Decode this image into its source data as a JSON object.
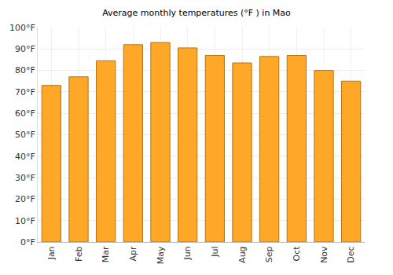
{
  "chart_data": {
    "type": "bar",
    "title": "Average monthly temperatures (°F ) in Mao",
    "categories": [
      "Jan",
      "Feb",
      "Mar",
      "Apr",
      "May",
      "Jun",
      "Jul",
      "Aug",
      "Sep",
      "Oct",
      "Nov",
      "Dec"
    ],
    "values": [
      73,
      77,
      84.5,
      92,
      93,
      90.5,
      87,
      83.5,
      86.5,
      87,
      80,
      75
    ],
    "color": "#ffa726",
    "ylim": [
      0,
      100
    ],
    "yticks": [
      {
        "value": 0,
        "label": "0°F"
      },
      {
        "value": 10,
        "label": "10°F"
      },
      {
        "value": 20,
        "label": "20°F"
      },
      {
        "value": 30,
        "label": "30°F"
      },
      {
        "value": 40,
        "label": "40°F"
      },
      {
        "value": 50,
        "label": "50°F"
      },
      {
        "value": 60,
        "label": "60°F"
      },
      {
        "value": 70,
        "label": "70°F"
      },
      {
        "value": 80,
        "label": "80°F"
      },
      {
        "value": 90,
        "label": "90°F"
      },
      {
        "value": 100,
        "label": "100°F"
      }
    ],
    "grid": true
  }
}
